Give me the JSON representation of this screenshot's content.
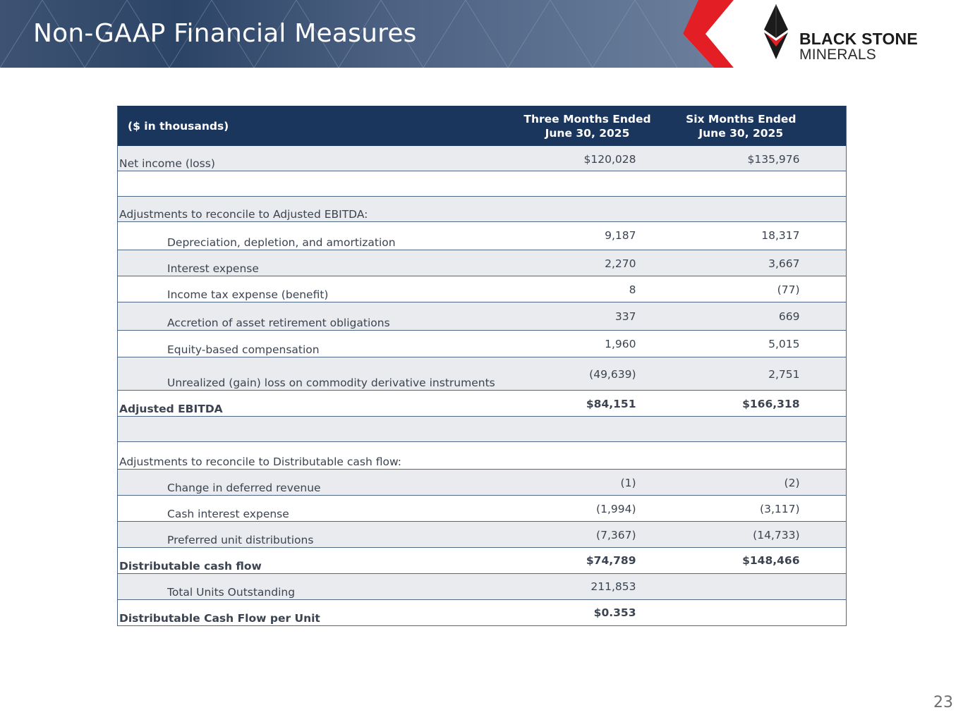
{
  "header": {
    "title": "Non-GAAP Financial Measures"
  },
  "logo": {
    "line1": "BLACK STONE",
    "line2": "MINERALS",
    "accent_color": "#e31e24"
  },
  "table": {
    "columns": {
      "label": "($ in thousands)",
      "three_months_line1": "Three Months Ended",
      "three_months_line2": "June 30, 2025",
      "six_months_line1": "Six Months Ended",
      "six_months_line2": "June 30, 2025"
    },
    "rows": [
      {
        "label": "Net income (loss)",
        "three": "$120,028",
        "six": "$135,976"
      },
      {
        "label": "",
        "three": "",
        "six": ""
      },
      {
        "label": "Adjustments to reconcile to Adjusted EBITDA:",
        "three": "",
        "six": ""
      },
      {
        "label": "Depreciation, depletion, and amortization",
        "three": "9,187",
        "six": "18,317"
      },
      {
        "label": "Interest expense",
        "three": "2,270",
        "six": "3,667"
      },
      {
        "label": "Income tax expense (benefit)",
        "three": "8",
        "six": "(77)"
      },
      {
        "label": "Accretion of asset retirement obligations",
        "three": "337",
        "six": "669"
      },
      {
        "label": "Equity-based compensation",
        "three": "1,960",
        "six": "5,015"
      },
      {
        "label": "Unrealized (gain) loss on commodity derivative instruments",
        "three": "(49,639)",
        "six": "2,751"
      },
      {
        "label": "Adjusted EBITDA",
        "three": "$84,151",
        "six": "$166,318"
      },
      {
        "label": "",
        "three": "",
        "six": ""
      },
      {
        "label": "Adjustments to reconcile to Distributable cash flow:",
        "three": "",
        "six": ""
      },
      {
        "label": "Change in deferred revenue",
        "three": "(1)",
        "six": "(2)"
      },
      {
        "label": "Cash interest expense",
        "three": "(1,994)",
        "six": "(3,117)"
      },
      {
        "label": "Preferred unit distributions",
        "three": "(7,367)",
        "six": "(14,733)"
      },
      {
        "label": "Distributable cash flow",
        "three": "$74,789",
        "six": "$148,466"
      },
      {
        "label": "Total Units Outstanding",
        "three": "211,853",
        "six": ""
      },
      {
        "label": "Distributable Cash Flow per Unit",
        "three": "$0.353",
        "six": ""
      }
    ]
  },
  "footer": {
    "page_number": "23"
  }
}
